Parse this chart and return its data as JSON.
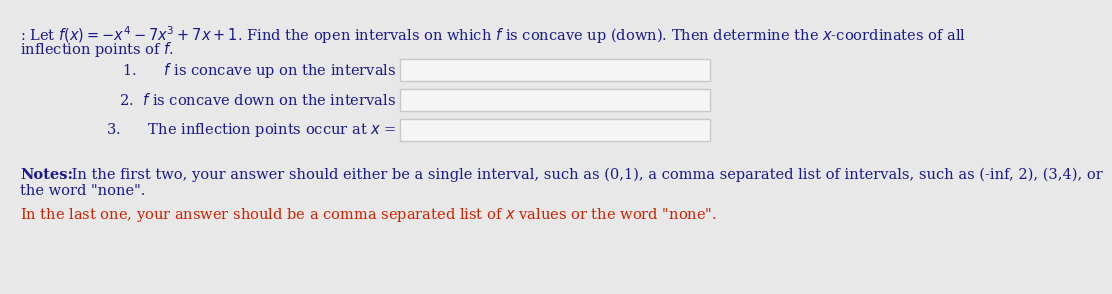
{
  "bg_color": "#e8e8e8",
  "text_color": "#1a1a8c",
  "red_color": "#cc2200",
  "box_face": "#f5f5f5",
  "box_edge": "#c8c8c8",
  "font_size": 10.5,
  "title_line1": ": Let $f(x) = -x^4 - 7x^3 + 7x + 1$. Find the open intervals on which $f$ is concave up (down). Then determine the $x$-coordinates of all",
  "title_line2": "inflection points of $f$.",
  "item1_label": "1.      $f$ is concave up on the intervals",
  "item2_label": "2.  $f$ is concave down on the intervals",
  "item3_label": "3.      The inflection points occur at $x$ =",
  "notes_bold": "Notes:",
  "notes_line1": " In the first two, your answer should either be a single interval, such as (0,1), a comma separated list of intervals, such as (-inf, 2), (3,4), or",
  "notes_line2": "the word \"none\".",
  "last_line": "In the last one, your answer should be a comma separated list of $x$ values or the word \"none\"."
}
